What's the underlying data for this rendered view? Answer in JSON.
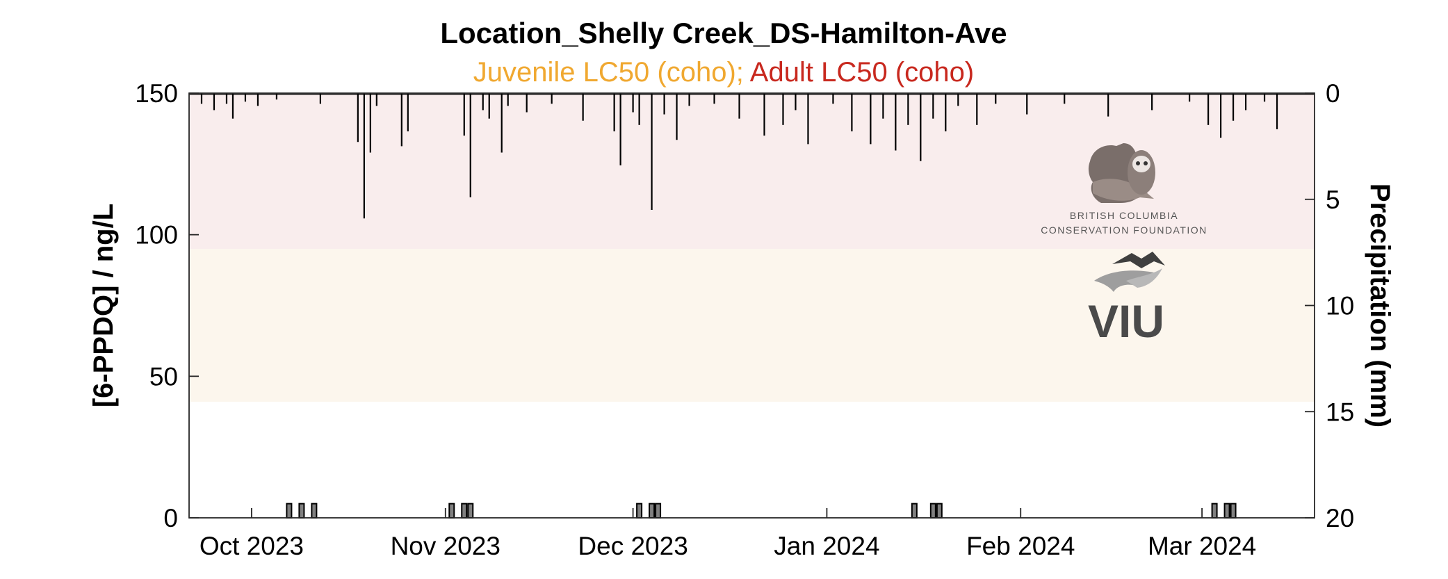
{
  "chart_data": {
    "type": "bar",
    "title": "Location_Shelly Creek_DS-Hamilton-Ave",
    "subtitle": {
      "juvenile_label": "Juvenile LC50 (coho);",
      "adult_label": "Adult LC50 (coho)",
      "juvenile_color": "#f0a830",
      "adult_color": "#c8281e"
    },
    "ylabel_left": "[6-PPDQ] / ng/L",
    "ylabel_right": "Precipitation (mm)",
    "ylim_left": [
      0,
      150
    ],
    "ylim_right_reversed": [
      0,
      20
    ],
    "yticks_left": [
      "0",
      "50",
      "100",
      "150"
    ],
    "yticks_right": [
      "0",
      "5",
      "10",
      "15",
      "20"
    ],
    "xlim_dates": [
      "2023-09-21",
      "2024-03-19"
    ],
    "xticks": [
      {
        "date": "2023-10-01",
        "label": "Oct 2023"
      },
      {
        "date": "2023-11-01",
        "label": "Nov 2023"
      },
      {
        "date": "2023-12-01",
        "label": "Dec 2023"
      },
      {
        "date": "2024-01-01",
        "label": "Jan 2024"
      },
      {
        "date": "2024-02-01",
        "label": "Feb 2024"
      },
      {
        "date": "2024-03-01",
        "label": "Mar 2024"
      }
    ],
    "bands": [
      {
        "name": "Adult LC50 (coho)",
        "from": 95,
        "to": 150,
        "color": "#f9eded"
      },
      {
        "name": "Juvenile LC50 (coho)",
        "from": 41,
        "to": 95,
        "color": "#fcf6ed"
      }
    ],
    "concentration_series": {
      "name": "6-PPDQ",
      "color": "#808080",
      "dates": [
        "2023-10-07",
        "2023-10-09",
        "2023-10-11",
        "2023-11-02",
        "2023-11-04",
        "2023-11-05",
        "2023-12-02",
        "2023-12-04",
        "2023-12-05",
        "2024-01-15",
        "2024-01-18",
        "2024-01-19",
        "2024-03-03",
        "2024-03-05",
        "2024-03-06"
      ],
      "values": [
        5,
        5,
        5,
        5,
        5,
        5,
        5,
        5,
        5,
        5,
        5,
        5,
        5,
        5,
        5
      ]
    },
    "precipitation_series": {
      "name": "Precipitation",
      "color": "#000000",
      "dates": [
        "2023-09-23",
        "2023-09-25",
        "2023-09-27",
        "2023-09-28",
        "2023-09-30",
        "2023-10-02",
        "2023-10-05",
        "2023-10-12",
        "2023-10-18",
        "2023-10-19",
        "2023-10-20",
        "2023-10-21",
        "2023-10-25",
        "2023-10-26",
        "2023-11-04",
        "2023-11-05",
        "2023-11-07",
        "2023-11-08",
        "2023-11-10",
        "2023-11-11",
        "2023-11-14",
        "2023-11-18",
        "2023-11-23",
        "2023-11-28",
        "2023-11-29",
        "2023-12-01",
        "2023-12-02",
        "2023-12-04",
        "2023-12-06",
        "2023-12-08",
        "2023-12-10",
        "2023-12-14",
        "2023-12-18",
        "2023-12-22",
        "2023-12-25",
        "2023-12-27",
        "2023-12-29",
        "2024-01-02",
        "2024-01-05",
        "2024-01-08",
        "2024-01-10",
        "2024-01-12",
        "2024-01-14",
        "2024-01-16",
        "2024-01-18",
        "2024-01-20",
        "2024-01-22",
        "2024-01-25",
        "2024-01-28",
        "2024-02-02",
        "2024-02-08",
        "2024-02-15",
        "2024-02-22",
        "2024-02-28",
        "2024-03-02",
        "2024-03-04",
        "2024-03-06",
        "2024-03-08",
        "2024-03-11",
        "2024-03-13"
      ],
      "values": [
        0.5,
        0.8,
        0.5,
        1.2,
        0.4,
        0.6,
        0.3,
        0.5,
        2.3,
        5.9,
        2.8,
        0.6,
        2.5,
        1.8,
        2.0,
        4.9,
        0.8,
        1.2,
        2.8,
        0.6,
        0.9,
        0.5,
        1.3,
        1.8,
        3.4,
        0.9,
        1.5,
        5.5,
        1.0,
        2.2,
        0.6,
        0.5,
        1.2,
        2.0,
        1.5,
        0.8,
        2.4,
        0.5,
        1.8,
        2.4,
        1.2,
        2.7,
        1.5,
        3.2,
        1.2,
        1.8,
        0.6,
        1.5,
        0.5,
        1.0,
        0.5,
        1.1,
        0.8,
        0.4,
        1.5,
        2.1,
        1.3,
        0.8,
        0.4,
        1.7
      ]
    }
  },
  "logos": {
    "bccf": {
      "line1": "BRITISH COLUMBIA",
      "line2": "CONSERVATION FOUNDATION",
      "icon": "bear-salmon-owl-icon"
    },
    "viu": {
      "text": "VIU",
      "icon": "mountain-leaf-icon"
    }
  }
}
